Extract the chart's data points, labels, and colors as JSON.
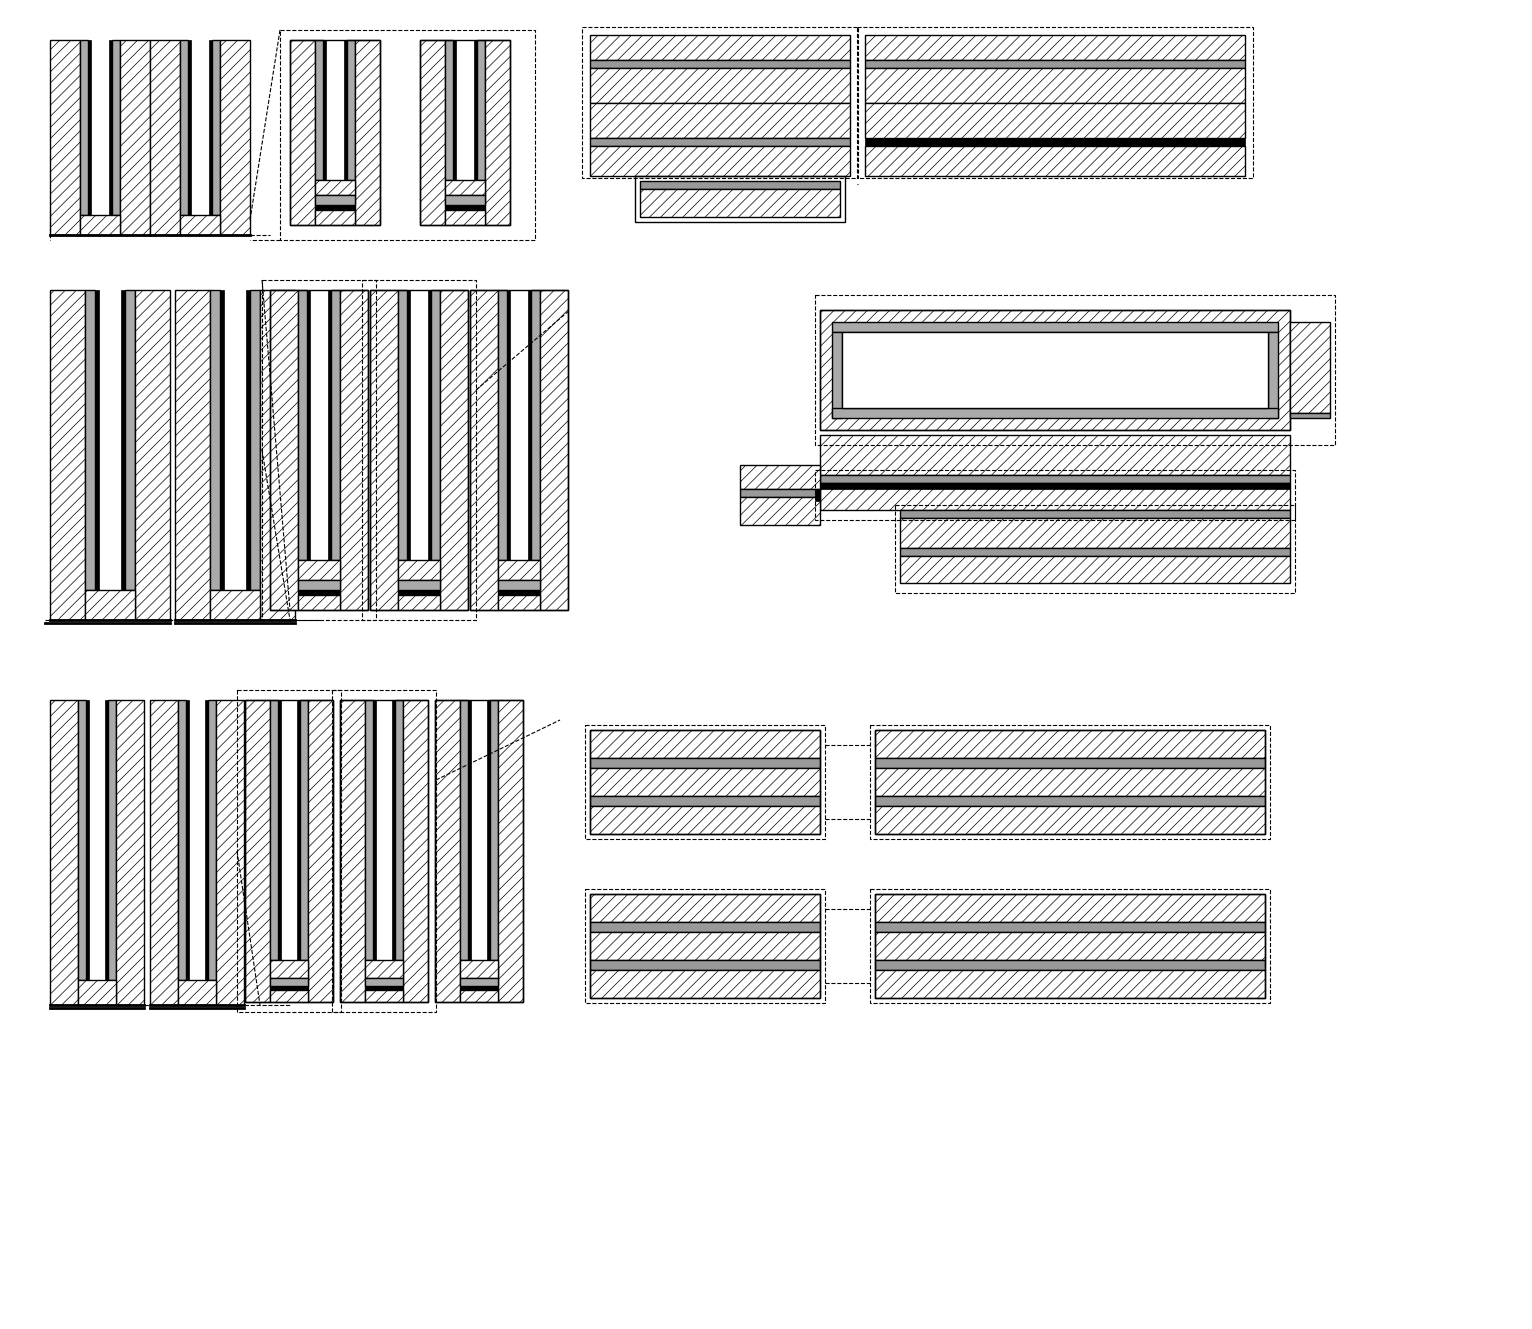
{
  "bg_color": "#ffffff",
  "hatch_dense": "////",
  "hatch_normal": "///",
  "ec": "#000000",
  "gray1": "#aaaaaa",
  "gray2": "#888888",
  "gray3": "#cccccc"
}
